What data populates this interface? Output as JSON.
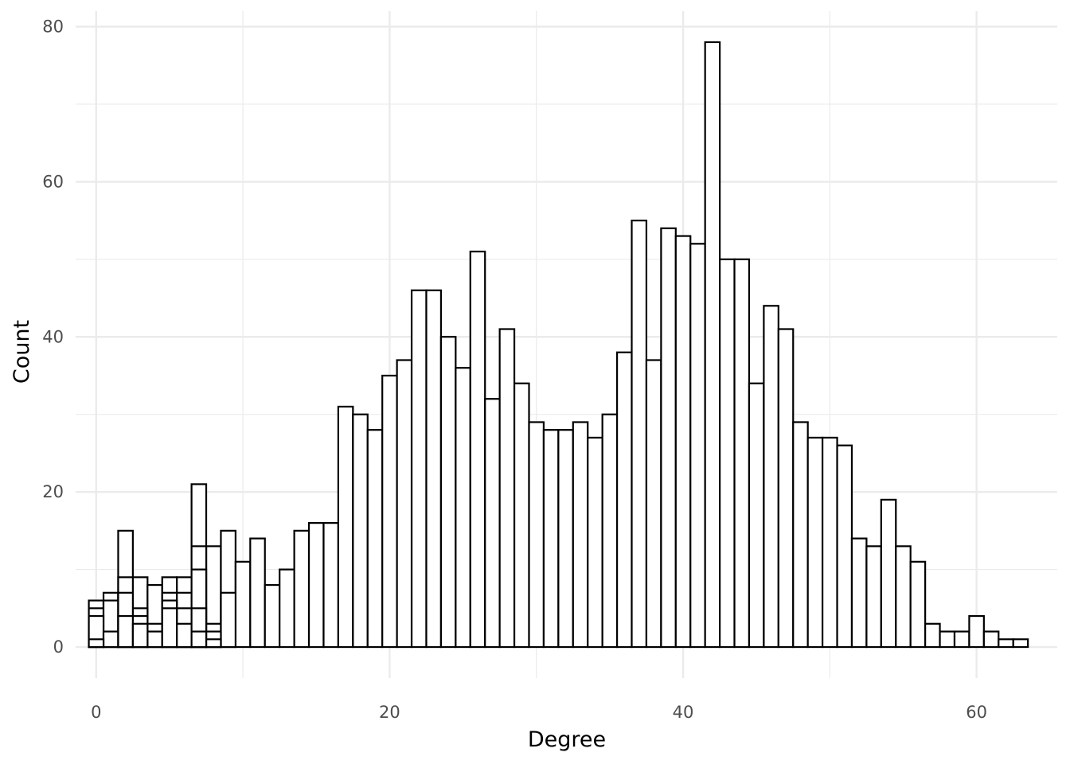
{
  "chart_data": {
    "type": "bar",
    "title": "",
    "xlabel": "Degree",
    "ylabel": "Count",
    "xlim": [
      -1.4,
      65.5
    ],
    "ylim": [
      -4,
      82
    ],
    "x_ticks": [
      0,
      20,
      40,
      60
    ],
    "x_tick_labels": [
      "0",
      "20",
      "40",
      "60"
    ],
    "y_ticks": [
      0,
      20,
      40,
      60,
      80
    ],
    "y_tick_labels": [
      "0",
      "20",
      "40",
      "60",
      "80"
    ],
    "grid": true,
    "bar_fill": "#ffffff",
    "bar_stroke": "#000000",
    "categories": [
      0,
      1,
      2,
      3,
      4,
      5,
      6,
      7,
      8,
      9,
      10,
      11,
      12,
      13,
      14,
      15,
      16,
      17,
      18,
      19,
      20,
      21,
      22,
      23,
      24,
      25,
      26,
      27,
      28,
      29,
      30,
      31,
      32,
      33,
      34,
      35,
      36,
      37,
      38,
      39,
      40,
      41,
      42,
      43,
      44,
      45,
      46,
      47,
      48,
      49,
      50,
      51,
      52,
      53,
      54,
      55,
      56,
      57,
      58,
      59,
      60,
      61,
      62,
      63
    ],
    "series": [
      {
        "values": [
          6,
          7,
          15,
          9,
          8,
          9,
          9,
          21,
          13,
          15,
          11,
          14,
          8,
          10,
          15,
          16,
          16,
          31,
          30,
          28,
          35,
          37,
          46,
          46,
          40,
          36,
          51,
          32,
          41,
          34,
          29,
          28,
          28,
          29,
          27,
          30,
          38,
          55,
          37,
          54,
          53,
          52,
          78,
          50,
          50,
          34,
          44,
          41,
          29,
          27,
          27,
          26,
          14,
          13,
          19,
          13,
          11,
          3,
          2,
          2,
          4,
          2,
          1,
          1
        ]
      },
      {
        "values": [
          5,
          6,
          9,
          5,
          3,
          7,
          7,
          13,
          3,
          7,
          null,
          null,
          null,
          null,
          null,
          null,
          null,
          null,
          null,
          null,
          null,
          null,
          null,
          null,
          null,
          null,
          null,
          null,
          null,
          null,
          null,
          null,
          null,
          null,
          null,
          null,
          null,
          null,
          null,
          null,
          null,
          null,
          null,
          null,
          null,
          null,
          null,
          null,
          null,
          null,
          null,
          null,
          null,
          null,
          null,
          null,
          null,
          null,
          null,
          null,
          null,
          null,
          null,
          null
        ]
      },
      {
        "values": [
          4,
          2,
          7,
          4,
          2,
          6,
          5,
          10,
          2,
          null,
          null,
          null,
          null,
          null,
          null,
          null,
          null,
          null,
          null,
          null,
          null,
          null,
          null,
          null,
          null,
          null,
          null,
          null,
          null,
          null,
          null,
          null,
          null,
          null,
          null,
          null,
          null,
          null,
          null,
          null,
          null,
          null,
          null,
          null,
          null,
          null,
          null,
          null,
          null,
          null,
          null,
          null,
          null,
          null,
          null,
          null,
          null,
          null,
          null,
          null,
          null,
          null,
          null,
          null
        ]
      },
      {
        "values": [
          1,
          null,
          4,
          3,
          null,
          5,
          3,
          5,
          1,
          null,
          null,
          null,
          null,
          null,
          null,
          null,
          null,
          null,
          null,
          null,
          null,
          null,
          null,
          null,
          null,
          null,
          null,
          null,
          null,
          null,
          null,
          null,
          null,
          null,
          null,
          null,
          null,
          null,
          null,
          null,
          null,
          null,
          null,
          null,
          null,
          null,
          null,
          null,
          null,
          null,
          null,
          null,
          null,
          null,
          null,
          null,
          null,
          null,
          null,
          null,
          null,
          null,
          null,
          null
        ]
      },
      {
        "values": [
          null,
          null,
          null,
          null,
          null,
          null,
          null,
          2,
          null,
          null,
          null,
          null,
          null,
          null,
          null,
          null,
          null,
          null,
          null,
          null,
          null,
          null,
          null,
          null,
          null,
          null,
          null,
          null,
          null,
          null,
          null,
          null,
          null,
          null,
          null,
          null,
          null,
          null,
          null,
          null,
          null,
          null,
          null,
          null,
          null,
          null,
          null,
          null,
          null,
          null,
          null,
          null,
          null,
          null,
          null,
          null,
          null,
          null,
          null,
          null,
          null,
          null,
          null,
          null
        ]
      }
    ]
  }
}
